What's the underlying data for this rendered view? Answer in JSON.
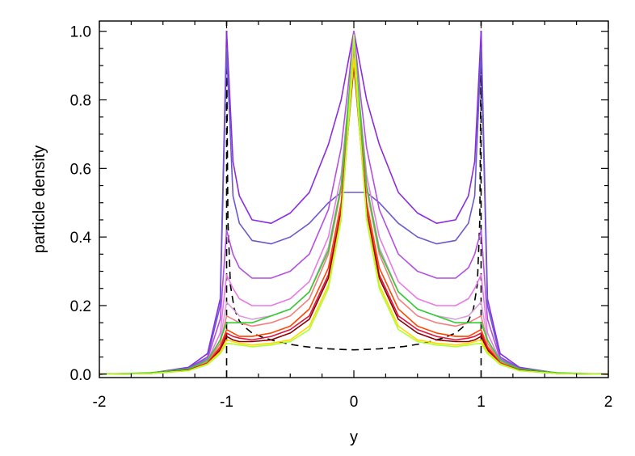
{
  "chart_data": {
    "type": "line",
    "title": "",
    "xlabel": "y",
    "ylabel": "particle density",
    "xlim": [
      -2,
      2
    ],
    "ylim": [
      -0.01,
      1.03
    ],
    "x_ticks": [
      -2,
      -1,
      0,
      1,
      2
    ],
    "x_tick_labels": [
      "-2",
      "-1",
      "0",
      "1",
      "2"
    ],
    "y_ticks": [
      0.0,
      0.2,
      0.4,
      0.6,
      0.8,
      1.0
    ],
    "y_tick_labels": [
      "0.0",
      "0.2",
      "0.4",
      "0.6",
      "0.8",
      "1.0"
    ],
    "grid": false,
    "legend": "none",
    "curve_x": [
      -2.0,
      -1.6,
      -1.3,
      -1.15,
      -1.05,
      -1.0,
      -0.95,
      -0.9,
      -0.8,
      -0.65,
      -0.5,
      -0.35,
      -0.2,
      -0.1,
      -0.05,
      0.0,
      0.05,
      0.1,
      0.2,
      0.35,
      0.5,
      0.65,
      0.8,
      0.9,
      0.95,
      1.0,
      1.05,
      1.15,
      1.3,
      1.6,
      2.0
    ],
    "reference_curve": {
      "name": "analytic",
      "style": "dashed",
      "color": "#000000",
      "x": [
        -0.999,
        -0.99,
        -0.97,
        -0.94,
        -0.9,
        -0.85,
        -0.8,
        -0.7,
        -0.6,
        -0.5,
        -0.4,
        -0.3,
        -0.2,
        -0.1,
        0.0,
        0.1,
        0.2,
        0.3,
        0.4,
        0.5,
        0.6,
        0.7,
        0.8,
        0.85,
        0.9,
        0.94,
        0.97,
        0.99,
        0.999
      ],
      "y": [
        0.9,
        0.45,
        0.26,
        0.19,
        0.155,
        0.135,
        0.12,
        0.105,
        0.095,
        0.087,
        0.081,
        0.077,
        0.074,
        0.072,
        0.071,
        0.072,
        0.074,
        0.077,
        0.081,
        0.087,
        0.095,
        0.105,
        0.12,
        0.135,
        0.155,
        0.19,
        0.26,
        0.45,
        0.9
      ]
    },
    "series": [
      {
        "color": "#8a2be2",
        "values": [
          0.0,
          0.003,
          0.02,
          0.06,
          0.22,
          1.0,
          0.62,
          0.52,
          0.45,
          0.44,
          0.47,
          0.53,
          0.67,
          0.8,
          0.9,
          1.0,
          0.9,
          0.8,
          0.67,
          0.53,
          0.47,
          0.44,
          0.45,
          0.52,
          0.62,
          1.0,
          0.22,
          0.06,
          0.02,
          0.003,
          0.0
        ]
      },
      {
        "color": "#6a5acd",
        "values": [
          0.0,
          0.003,
          0.018,
          0.05,
          0.2,
          0.95,
          0.52,
          0.44,
          0.39,
          0.38,
          0.4,
          0.44,
          0.5,
          0.53,
          0.53,
          0.53,
          0.53,
          0.53,
          0.5,
          0.44,
          0.4,
          0.38,
          0.39,
          0.44,
          0.52,
          0.95,
          0.2,
          0.05,
          0.018,
          0.003,
          0.0
        ]
      },
      {
        "color": "#b44fe0",
        "values": [
          0.0,
          0.002,
          0.016,
          0.045,
          0.16,
          0.42,
          0.35,
          0.31,
          0.28,
          0.28,
          0.3,
          0.35,
          0.48,
          0.66,
          0.82,
          1.0,
          0.82,
          0.66,
          0.48,
          0.35,
          0.3,
          0.28,
          0.28,
          0.31,
          0.35,
          0.42,
          0.16,
          0.045,
          0.016,
          0.002,
          0.0
        ]
      },
      {
        "color": "#e879e8",
        "values": [
          0.0,
          0.002,
          0.014,
          0.04,
          0.12,
          0.29,
          0.25,
          0.22,
          0.2,
          0.2,
          0.22,
          0.27,
          0.4,
          0.58,
          0.77,
          0.97,
          0.77,
          0.58,
          0.4,
          0.27,
          0.22,
          0.2,
          0.2,
          0.22,
          0.25,
          0.29,
          0.12,
          0.04,
          0.014,
          0.002,
          0.0
        ]
      },
      {
        "color": "#d8a0d8",
        "values": [
          0.0,
          0.002,
          0.012,
          0.035,
          0.1,
          0.21,
          0.19,
          0.17,
          0.16,
          0.17,
          0.19,
          0.24,
          0.37,
          0.55,
          0.75,
          0.96,
          0.75,
          0.55,
          0.37,
          0.24,
          0.19,
          0.17,
          0.16,
          0.17,
          0.19,
          0.21,
          0.1,
          0.035,
          0.012,
          0.002,
          0.0
        ]
      },
      {
        "color": "#f08080",
        "values": [
          0.0,
          0.002,
          0.012,
          0.035,
          0.09,
          0.17,
          0.16,
          0.15,
          0.14,
          0.15,
          0.17,
          0.22,
          0.35,
          0.54,
          0.74,
          0.95,
          0.74,
          0.54,
          0.35,
          0.22,
          0.17,
          0.15,
          0.14,
          0.15,
          0.16,
          0.17,
          0.09,
          0.035,
          0.012,
          0.002,
          0.0
        ]
      },
      {
        "color": "#32cd32",
        "values": [
          0.0,
          0.004,
          0.015,
          0.04,
          0.1,
          0.15,
          0.15,
          0.15,
          0.15,
          0.17,
          0.19,
          0.24,
          0.36,
          0.55,
          0.76,
          0.98,
          0.76,
          0.55,
          0.36,
          0.24,
          0.19,
          0.17,
          0.15,
          0.15,
          0.15,
          0.15,
          0.1,
          0.04,
          0.015,
          0.004,
          0.0
        ]
      },
      {
        "color": "#ff4500",
        "values": [
          0.0,
          0.002,
          0.012,
          0.033,
          0.08,
          0.13,
          0.12,
          0.11,
          0.11,
          0.12,
          0.14,
          0.19,
          0.31,
          0.5,
          0.71,
          0.92,
          0.71,
          0.5,
          0.31,
          0.19,
          0.14,
          0.12,
          0.11,
          0.11,
          0.12,
          0.13,
          0.08,
          0.033,
          0.012,
          0.002,
          0.0
        ]
      },
      {
        "color": "#dc143c",
        "values": [
          0.0,
          0.002,
          0.011,
          0.032,
          0.075,
          0.12,
          0.11,
          0.105,
          0.1,
          0.11,
          0.13,
          0.17,
          0.29,
          0.48,
          0.7,
          0.91,
          0.7,
          0.48,
          0.29,
          0.17,
          0.13,
          0.11,
          0.1,
          0.105,
          0.11,
          0.12,
          0.075,
          0.032,
          0.011,
          0.002,
          0.0
        ]
      },
      {
        "color": "#8b0000",
        "values": [
          0.0,
          0.002,
          0.011,
          0.03,
          0.07,
          0.11,
          0.1,
          0.095,
          0.095,
          0.1,
          0.12,
          0.16,
          0.28,
          0.47,
          0.69,
          0.9,
          0.69,
          0.47,
          0.28,
          0.16,
          0.12,
          0.1,
          0.095,
          0.095,
          0.1,
          0.11,
          0.07,
          0.03,
          0.011,
          0.002,
          0.0
        ]
      },
      {
        "color": "#ffd700",
        "values": [
          0.0,
          0.002,
          0.01,
          0.03,
          0.065,
          0.1,
          0.095,
          0.09,
          0.085,
          0.09,
          0.1,
          0.14,
          0.26,
          0.46,
          0.69,
          0.92,
          0.69,
          0.46,
          0.26,
          0.14,
          0.1,
          0.09,
          0.085,
          0.09,
          0.095,
          0.1,
          0.065,
          0.03,
          0.01,
          0.002,
          0.0
        ]
      },
      {
        "color": "#adff2f",
        "values": [
          0.0,
          0.002,
          0.01,
          0.028,
          0.06,
          0.09,
          0.088,
          0.085,
          0.08,
          0.085,
          0.095,
          0.13,
          0.25,
          0.45,
          0.7,
          0.99,
          0.7,
          0.45,
          0.25,
          0.13,
          0.095,
          0.085,
          0.08,
          0.085,
          0.088,
          0.09,
          0.06,
          0.028,
          0.01,
          0.002,
          0.0
        ]
      }
    ]
  }
}
